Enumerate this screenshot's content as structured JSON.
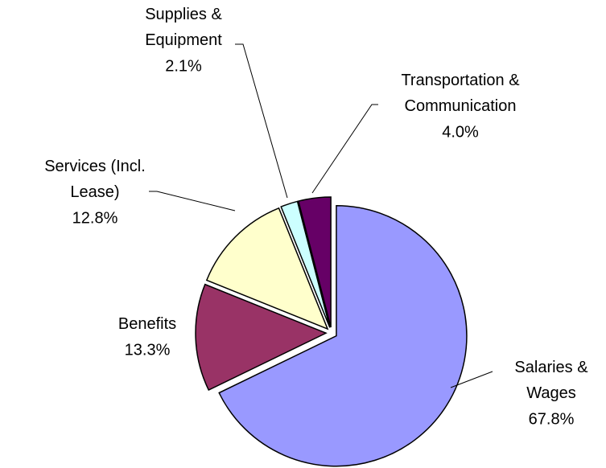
{
  "chart_data": {
    "type": "pie",
    "categories": [
      "Salaries &\nWages",
      "Benefits",
      "Services (Incl.\nLease)",
      "Supplies &\nEquipment",
      "Transportation &\nCommunication"
    ],
    "values": [
      67.8,
      13.3,
      12.8,
      2.1,
      4.0
    ],
    "value_labels": [
      "67.8%",
      "13.3%",
      "12.8%",
      "2.1%",
      "4.0%"
    ],
    "colors": [
      "#9999ff",
      "#993366",
      "#ffffcc",
      "#ccffff",
      "#660066"
    ]
  }
}
